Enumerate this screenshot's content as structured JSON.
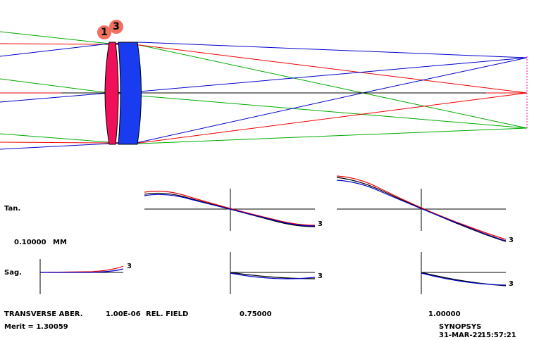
{
  "surface_labels": [
    "1",
    "3"
  ],
  "plot_labels": {
    "tan": "Tan.",
    "scale": "0.10000",
    "unit": "MM",
    "sag": "Sag."
  },
  "curve_labels": [
    "3",
    "3",
    "3",
    "3",
    "3"
  ],
  "footer": {
    "aberration": "TRANSVERSE ABER.",
    "wavelength_value": "1.00E-06",
    "field": "REL. FIELD",
    "field_1": "0.75000",
    "field_2": "1.00000",
    "merit": "Merit = 1.30059",
    "program": "SYNOPSYS",
    "date": "31-MAR-22",
    "time": "15:57:21"
  }
}
